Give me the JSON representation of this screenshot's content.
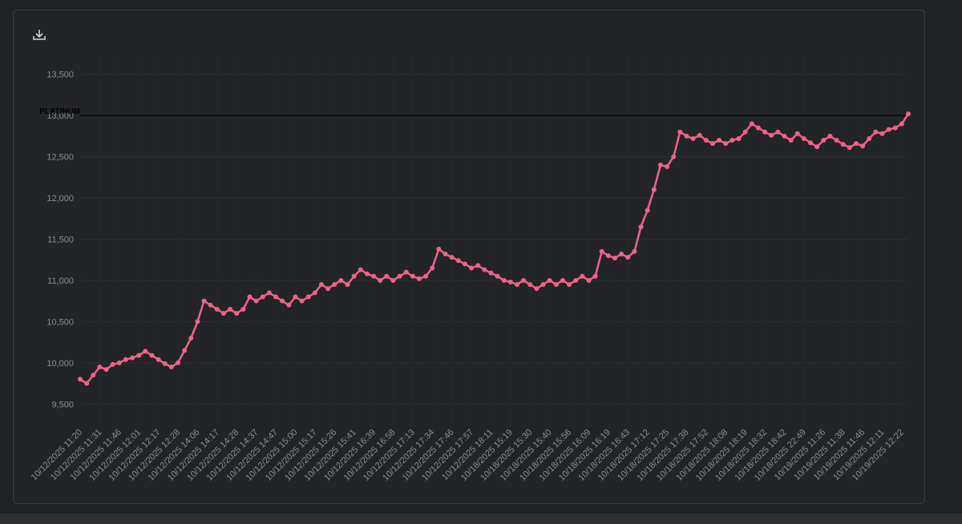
{
  "chart_data": {
    "type": "line",
    "color": "#f06388",
    "ylim": [
      9250,
      13750
    ],
    "yticks": [
      {
        "value": 9500,
        "label": "9,500"
      },
      {
        "value": 10000,
        "label": "10,000"
      },
      {
        "value": 10500,
        "label": "10,500"
      },
      {
        "value": 11000,
        "label": "11,000"
      },
      {
        "value": 11500,
        "label": "11,500"
      },
      {
        "value": 12000,
        "label": "12,000"
      },
      {
        "value": 12500,
        "label": "12,500"
      },
      {
        "value": 13000,
        "label": "13,000"
      },
      {
        "value": 13500,
        "label": "13,500"
      }
    ],
    "grid": true,
    "annotation": {
      "label": "PLATINUM",
      "value": 13000
    },
    "categories": [
      "10/12/2025 11:20",
      null,
      null,
      "10/12/2025 11:31",
      null,
      null,
      "10/12/2025 11:46",
      null,
      null,
      "10/12/2025 12:01",
      null,
      null,
      "10/12/2025 12:17",
      null,
      null,
      "10/12/2025 12:28",
      null,
      null,
      "10/12/2025 14:06",
      null,
      null,
      "10/12/2025 14:17",
      null,
      null,
      "10/12/2025 14:28",
      null,
      null,
      "10/12/2025 14:37",
      null,
      null,
      "10/12/2025 14:47",
      null,
      null,
      "10/12/2025 15:00",
      null,
      null,
      "10/12/2025 15:17",
      null,
      null,
      "10/12/2025 15:26",
      null,
      null,
      "10/12/2025 15:41",
      null,
      null,
      "10/12/2025 16:39",
      null,
      null,
      "10/12/2025 16:58",
      null,
      null,
      "10/12/2025 17:13",
      null,
      null,
      "10/12/2025 17:34",
      null,
      null,
      "10/12/2025 17:46",
      null,
      null,
      "10/12/2025 17:57",
      null,
      null,
      "10/12/2025 18:11",
      null,
      null,
      "10/18/2025 15:19",
      null,
      null,
      "10/18/2025 15:30",
      null,
      null,
      "10/18/2025 15:40",
      null,
      null,
      "10/18/2025 15:56",
      null,
      null,
      "10/18/2025 16:09",
      null,
      null,
      "10/18/2025 16:19",
      null,
      null,
      "10/18/2025 16:43",
      null,
      null,
      "10/18/2025 17:12",
      null,
      null,
      "10/18/2025 17:25",
      null,
      null,
      "10/18/2025 17:38",
      null,
      null,
      "10/18/2025 17:52",
      null,
      null,
      "10/18/2025 18:08",
      null,
      null,
      "10/18/2025 18:19",
      null,
      null,
      "10/18/2025 18:32",
      null,
      null,
      "10/18/2025 18:42",
      null,
      null,
      "10/18/2025 22:49",
      null,
      null,
      "10/19/2025 11:26",
      null,
      null,
      "10/19/2025 11:38",
      null,
      null,
      "10/19/2025 11:46",
      null,
      null,
      "10/19/2025 12:11",
      null,
      null,
      "10/19/2025 12:22",
      null
    ],
    "values": [
      9800,
      9750,
      9850,
      9950,
      9920,
      9980,
      10000,
      10040,
      10060,
      10090,
      10140,
      10090,
      10040,
      9990,
      9950,
      10000,
      10150,
      10300,
      10500,
      10750,
      10700,
      10650,
      10600,
      10650,
      10600,
      10650,
      10800,
      10750,
      10800,
      10850,
      10800,
      10750,
      10700,
      10800,
      10750,
      10800,
      10850,
      10950,
      10900,
      10950,
      11000,
      10950,
      11050,
      11130,
      11080,
      11050,
      11000,
      11050,
      11000,
      11050,
      11100,
      11050,
      11020,
      11050,
      11150,
      11380,
      11320,
      11280,
      11240,
      11200,
      11150,
      11180,
      11130,
      11090,
      11050,
      11000,
      10980,
      10950,
      11000,
      10950,
      10900,
      10950,
      11000,
      10950,
      11000,
      10950,
      11000,
      11050,
      11000,
      11050,
      11350,
      11300,
      11270,
      11320,
      11280,
      11350,
      11650,
      11850,
      12100,
      12400,
      12380,
      12500,
      12800,
      12750,
      12720,
      12760,
      12700,
      12660,
      12700,
      12660,
      12700,
      12720,
      12800,
      12900,
      12850,
      12800,
      12760,
      12800,
      12750,
      12700,
      12780,
      12720,
      12670,
      12620,
      12700,
      12750,
      12700,
      12650,
      12610,
      12660,
      12630,
      12720,
      12800,
      12780,
      12830,
      12850,
      12900,
      13020
    ]
  }
}
